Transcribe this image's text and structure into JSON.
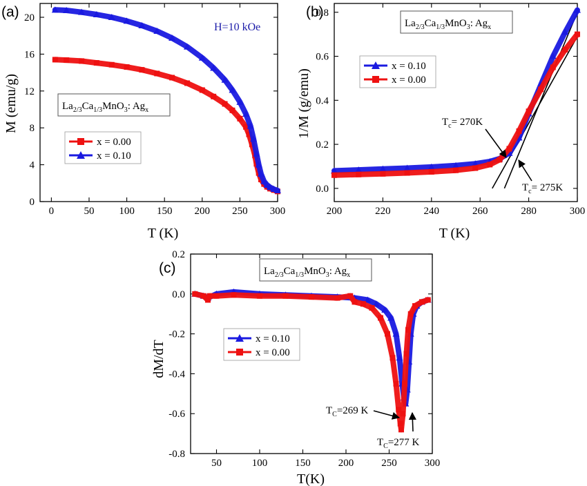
{
  "figure": {
    "compound": {
      "base": "La",
      "s1": "2/3",
      "mid": "Ca",
      "s2": "1/3",
      "tail": "MnO",
      "s3": "3",
      "after": ": Ag",
      "s4": "x"
    }
  },
  "chart_data": [
    {
      "type": "line",
      "panel_label": "(a)",
      "xlabel": "T (K)",
      "ylabel": "M (emu/g)",
      "xlim": [
        -15,
        300
      ],
      "ylim": [
        0,
        21.5
      ],
      "xticks": [
        0,
        50,
        100,
        150,
        200,
        250,
        300
      ],
      "yticks": [
        0,
        4,
        8,
        12,
        16,
        20
      ],
      "grid": false,
      "legend_position": "middle-left",
      "annotations": [
        {
          "text": "H=10 kOe",
          "color": "#1a1aa8",
          "x": 240,
          "y": 20.0
        }
      ],
      "series": [
        {
          "name": "x = 0.00",
          "color": "#ee1111",
          "marker": "square",
          "x": [
            5,
            20,
            40,
            60,
            80,
            100,
            120,
            140,
            160,
            180,
            200,
            215,
            230,
            240,
            250,
            258,
            262,
            266,
            270,
            272,
            275,
            278,
            282,
            286,
            290,
            295,
            300
          ],
          "y": [
            15.4,
            15.35,
            15.25,
            15.05,
            14.85,
            14.6,
            14.3,
            13.9,
            13.45,
            12.85,
            12.1,
            11.4,
            10.6,
            9.9,
            9.0,
            8.1,
            7.3,
            6.2,
            5.0,
            4.1,
            3.1,
            2.4,
            1.9,
            1.6,
            1.4,
            1.25,
            1.1
          ]
        },
        {
          "name": "x = 0.10",
          "color": "#1a1ae0",
          "marker": "triangle",
          "x": [
            5,
            20,
            40,
            60,
            80,
            100,
            120,
            140,
            160,
            180,
            200,
            215,
            230,
            240,
            250,
            258,
            264,
            268,
            272,
            275,
            278,
            282,
            286,
            290,
            295,
            300
          ],
          "y": [
            20.8,
            20.75,
            20.55,
            20.3,
            20.0,
            19.6,
            19.1,
            18.5,
            17.75,
            16.8,
            15.6,
            14.5,
            13.2,
            12.1,
            10.8,
            9.5,
            8.2,
            6.8,
            5.2,
            4.0,
            3.0,
            2.2,
            1.8,
            1.55,
            1.35,
            1.2
          ]
        }
      ]
    },
    {
      "type": "line",
      "panel_label": "(b)",
      "xlabel": "T (K)",
      "ylabel": "1/M (g/emu)",
      "xlim": [
        200,
        300
      ],
      "ylim": [
        -0.06,
        0.84
      ],
      "xticks": [
        200,
        220,
        240,
        260,
        280,
        300
      ],
      "yticks": [
        0.0,
        0.2,
        0.4,
        0.6,
        0.8
      ],
      "grid": false,
      "legend_position": "upper-left",
      "annotations": [
        {
          "text": "T",
          "sub": "c",
          "rest": "= 270K"
        },
        {
          "text": "T",
          "sub": "c",
          "rest": "= 275K"
        }
      ],
      "series": [
        {
          "name": "x = 0.10",
          "color": "#1a1ae0",
          "marker": "triangle",
          "x": [
            200,
            210,
            220,
            230,
            240,
            250,
            258,
            264,
            268,
            272,
            276,
            280,
            285,
            290,
            295,
            300
          ],
          "y": [
            0.08,
            0.084,
            0.088,
            0.092,
            0.097,
            0.104,
            0.112,
            0.122,
            0.135,
            0.16,
            0.23,
            0.34,
            0.47,
            0.6,
            0.71,
            0.81
          ]
        },
        {
          "name": "x = 0.00",
          "color": "#ee1111",
          "marker": "square",
          "x": [
            200,
            210,
            220,
            230,
            240,
            250,
            258,
            264,
            268,
            272,
            276,
            280,
            285,
            290,
            295,
            300
          ],
          "y": [
            0.06,
            0.063,
            0.066,
            0.07,
            0.075,
            0.082,
            0.092,
            0.108,
            0.13,
            0.18,
            0.26,
            0.35,
            0.45,
            0.55,
            0.63,
            0.7
          ]
        }
      ],
      "fit_lines": [
        {
          "x": [
            265,
            300
          ],
          "y": [
            0.0,
            0.69
          ]
        },
        {
          "x": [
            270,
            300
          ],
          "y": [
            0.0,
            0.8
          ]
        }
      ]
    },
    {
      "type": "line",
      "panel_label": "(c)",
      "xlabel": "T(K)",
      "ylabel": "dM/dT",
      "xlim": [
        20,
        300
      ],
      "ylim": [
        -0.8,
        0.2
      ],
      "xticks": [
        50,
        100,
        150,
        200,
        250,
        300
      ],
      "yticks": [
        0.2,
        0.0,
        -0.2,
        -0.4,
        -0.6,
        -0.8
      ],
      "grid": false,
      "legend_position": "middle-left",
      "annotations": [
        {
          "text": "T",
          "sub": "C",
          "rest": "=269 K"
        },
        {
          "text": "T",
          "sub": "C",
          "rest": "=277 K"
        }
      ],
      "series": [
        {
          "name": "x = 0.10",
          "color": "#1a1ae0",
          "marker": "triangle",
          "x": [
            25,
            35,
            40,
            50,
            70,
            100,
            130,
            160,
            190,
            210,
            225,
            235,
            245,
            252,
            258,
            262,
            265,
            267,
            269,
            271,
            273,
            275,
            278,
            282,
            288,
            295
          ],
          "y": [
            0.0,
            -0.01,
            -0.02,
            0.0,
            0.01,
            0.0,
            -0.005,
            -0.01,
            -0.015,
            -0.02,
            -0.03,
            -0.05,
            -0.08,
            -0.12,
            -0.2,
            -0.32,
            -0.45,
            -0.52,
            -0.55,
            -0.48,
            -0.34,
            -0.2,
            -0.1,
            -0.06,
            -0.04,
            -0.03
          ]
        },
        {
          "name": "x = 0.00",
          "color": "#ee1111",
          "marker": "square",
          "x": [
            25,
            35,
            40,
            42,
            50,
            70,
            100,
            130,
            160,
            190,
            205,
            210,
            220,
            230,
            240,
            248,
            254,
            258,
            261,
            263,
            264,
            266,
            268,
            270,
            272,
            275,
            280,
            288,
            295
          ],
          "y": [
            0.0,
            -0.01,
            -0.03,
            -0.01,
            -0.01,
            -0.005,
            -0.01,
            -0.01,
            -0.015,
            -0.02,
            -0.01,
            -0.04,
            -0.05,
            -0.07,
            -0.12,
            -0.2,
            -0.32,
            -0.45,
            -0.58,
            -0.65,
            -0.68,
            -0.6,
            -0.45,
            -0.3,
            -0.18,
            -0.1,
            -0.06,
            -0.04,
            -0.03
          ]
        }
      ]
    }
  ]
}
